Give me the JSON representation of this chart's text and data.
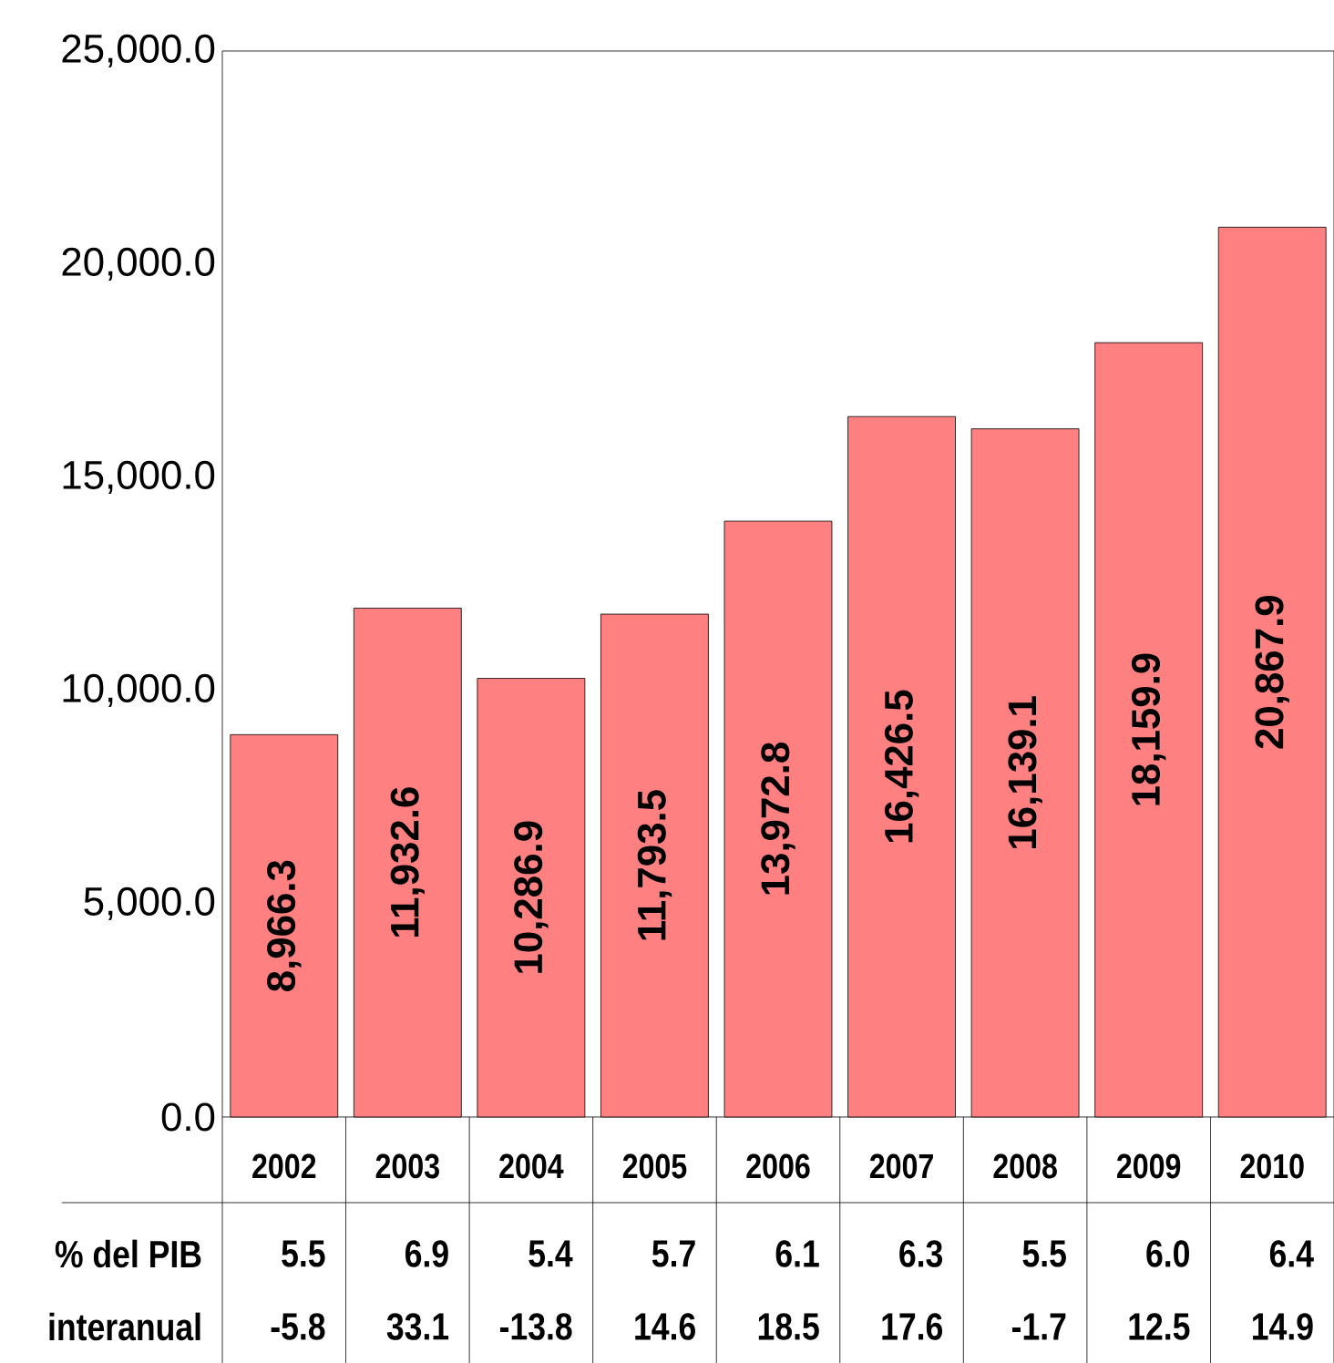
{
  "chart_data": {
    "type": "bar",
    "categories": [
      "2002",
      "2003",
      "2004",
      "2005",
      "2006",
      "2007",
      "2008",
      "2009",
      "2010"
    ],
    "series": [
      {
        "color": "#ff8080",
        "values": [
          8966.3,
          11932.6,
          10286.9,
          11793.5,
          13972.8,
          16426.5,
          16139.1,
          18159.9,
          20867.9
        ],
        "value_labels": [
          "8,966.3",
          "11,932.6",
          "10,286.9",
          "11,793.5",
          "13,972.8",
          "16,426.5",
          "16,139.1",
          "18,159.9",
          "20,867.9"
        ]
      }
    ],
    "annotations": [
      "% del PIB",
      "5.5",
      "6.9",
      "5.4",
      "5.7",
      "6.1",
      "6.3",
      "5.5",
      "6.0",
      "6.4",
      "interanual",
      "-5.8",
      "33.1",
      "-13.8",
      "14.6",
      "18.5",
      "17.6",
      "-1.7",
      "12.5",
      "14.9"
    ],
    "ylim": [
      0,
      25000
    ],
    "yticks": [
      {
        "value": 0,
        "label": "0.0"
      },
      {
        "value": 5000,
        "label": "5,000.0"
      },
      {
        "value": 10000,
        "label": "10,000.0"
      },
      {
        "value": 15000,
        "label": "15,000.0"
      },
      {
        "value": 20000,
        "label": "20,000.0"
      },
      {
        "value": 25000,
        "label": "25,000.0"
      }
    ]
  }
}
